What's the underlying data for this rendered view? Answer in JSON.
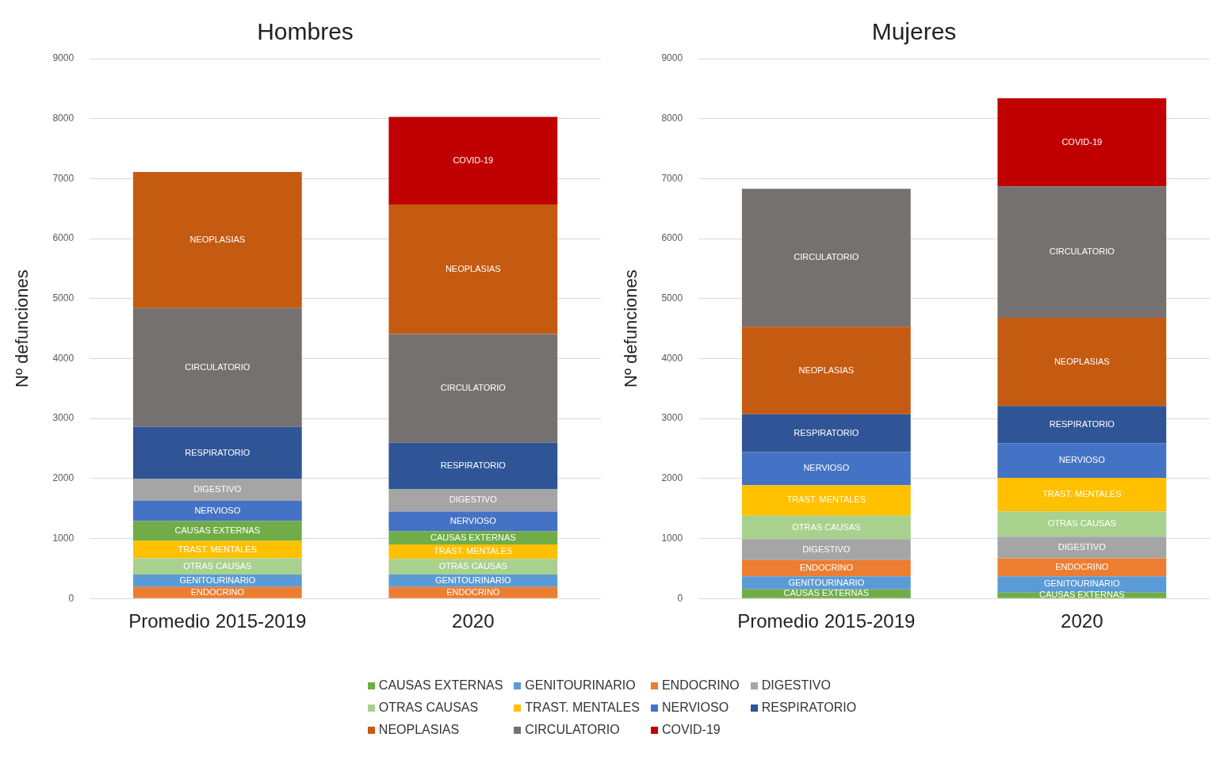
{
  "chart_data": [
    {
      "type": "bar",
      "title": "Hombres",
      "ylabel": "Nº defunciones",
      "categories": [
        "Promedio 2015-2019",
        "2020"
      ],
      "stacked": true,
      "ylim": [
        0,
        9000
      ],
      "yticks": [
        0,
        1000,
        2000,
        3000,
        4000,
        5000,
        6000,
        7000,
        8000,
        9000
      ],
      "grid": "y",
      "series": [
        {
          "name": "ENDOCRINO",
          "color": "#ed7d31",
          "values": [
            190,
            190
          ]
        },
        {
          "name": "GENITOURINARIO",
          "color": "#5b9bd5",
          "values": [
            210,
            210
          ]
        },
        {
          "name": "OTRAS CAUSAS",
          "color": "#a9d18e",
          "values": [
            270,
            260
          ]
        },
        {
          "name": "TRAST. MENTALES",
          "color": "#ffc000",
          "values": [
            290,
            240
          ]
        },
        {
          "name": "CAUSAS EXTERNAS",
          "color": "#70ad47",
          "values": [
            330,
            220
          ]
        },
        {
          "name": "NERVIOSO",
          "color": "#4472c4",
          "values": [
            340,
            330
          ]
        },
        {
          "name": "DIGESTIVO",
          "color": "#a5a5a5",
          "values": [
            360,
            370
          ]
        },
        {
          "name": "RESPIRATORIO",
          "color": "#2f5597",
          "values": [
            870,
            780
          ]
        },
        {
          "name": "CIRCULATORIO",
          "color": "#767171",
          "values": [
            1980,
            1810
          ]
        },
        {
          "name": "NEOPLASIAS",
          "color": "#c55a11",
          "values": [
            2270,
            2160
          ]
        },
        {
          "name": "COVID-19",
          "color": "#c00000",
          "values": [
            null,
            1460
          ]
        }
      ]
    },
    {
      "type": "bar",
      "title": "Mujeres",
      "ylabel": "Nº defunciones",
      "categories": [
        "Promedio 2015-2019",
        "2020"
      ],
      "stacked": true,
      "ylim": [
        0,
        9000
      ],
      "yticks": [
        0,
        1000,
        2000,
        3000,
        4000,
        5000,
        6000,
        7000,
        8000,
        9000
      ],
      "grid": "y",
      "legend": "bottom",
      "series": [
        {
          "name": "CAUSAS EXTERNAS",
          "color": "#70ad47",
          "values": [
            150,
            100
          ]
        },
        {
          "name": "GENITOURINARIO",
          "color": "#5b9bd5",
          "values": [
            220,
            270
          ]
        },
        {
          "name": "ENDOCRINO",
          "color": "#ed7d31",
          "values": [
            270,
            300
          ]
        },
        {
          "name": "DIGESTIVO",
          "color": "#a5a5a5",
          "values": [
            350,
            360
          ]
        },
        {
          "name": "OTRAS CAUSAS",
          "color": "#a9d18e",
          "values": [
            390,
            420
          ]
        },
        {
          "name": "TRAST. MENTALES",
          "color": "#ffc000",
          "values": [
            510,
            560
          ]
        },
        {
          "name": "NERVIOSO",
          "color": "#4472c4",
          "values": [
            550,
            580
          ]
        },
        {
          "name": "RESPIRATORIO",
          "color": "#2f5597",
          "values": [
            630,
            620
          ]
        },
        {
          "name": "NEOPLASIAS",
          "color": "#c55a11",
          "values": [
            1460,
            1470
          ]
        },
        {
          "name": "CIRCULATORIO",
          "color": "#767171",
          "values": [
            2300,
            2190
          ]
        },
        {
          "name": "COVID-19",
          "color": "#c00000",
          "values": [
            null,
            1470
          ]
        }
      ]
    }
  ]
}
